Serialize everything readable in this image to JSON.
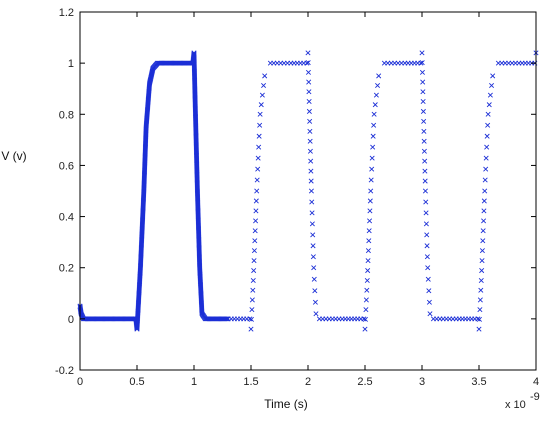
{
  "chart_data": {
    "type": "scatter",
    "xlabel": "Time (s)",
    "ylabel": "V (v)",
    "x_multiplier": {
      "base": "x 10",
      "exponent": "-9"
    },
    "x_unit_scale": 1e-09,
    "xlim": [
      0,
      4
    ],
    "ylim": [
      -0.2,
      1.2
    ],
    "x_ticks": [
      "0",
      "0.5",
      "1",
      "1.5",
      "2",
      "2.5",
      "3",
      "3.5",
      "4"
    ],
    "y_ticks": [
      "-0.2",
      "0",
      "0.2",
      "0.4",
      "0.6",
      "0.8",
      "1",
      "1.2"
    ],
    "grid": false,
    "marker": "x",
    "colors": {
      "series": "#1c2fd6",
      "axis": "#000000"
    },
    "series": [
      {
        "values": [
          [
            0.0,
            0.05
          ],
          [
            0.01,
            0.02
          ],
          [
            0.03,
            0.0
          ],
          [
            0.1,
            0.0
          ],
          [
            0.25,
            0.0
          ],
          [
            0.45,
            0.0
          ],
          [
            0.49,
            0.0
          ],
          [
            0.5,
            -0.04
          ],
          [
            0.53,
            0.2
          ],
          [
            0.56,
            0.5
          ],
          [
            0.58,
            0.75
          ],
          [
            0.61,
            0.92
          ],
          [
            0.64,
            0.98
          ],
          [
            0.68,
            1.0
          ],
          [
            0.8,
            1.0
          ],
          [
            0.95,
            1.0
          ],
          [
            0.99,
            1.0
          ],
          [
            1.0,
            1.04
          ],
          [
            1.01,
            0.85
          ],
          [
            1.03,
            0.5
          ],
          [
            1.05,
            0.2
          ],
          [
            1.07,
            0.02
          ],
          [
            1.1,
            0.0
          ],
          [
            1.3,
            0.0
          ],
          [
            1.49,
            0.0
          ],
          [
            1.5,
            -0.04
          ],
          [
            1.52,
            0.15
          ],
          [
            1.55,
            0.5
          ],
          [
            1.58,
            0.8
          ],
          [
            1.62,
            0.95
          ],
          [
            1.67,
            1.0
          ],
          [
            1.85,
            1.0
          ],
          [
            1.99,
            1.0
          ],
          [
            2.0,
            1.04
          ],
          [
            2.01,
            0.85
          ],
          [
            2.03,
            0.5
          ],
          [
            2.05,
            0.2
          ],
          [
            2.07,
            0.02
          ],
          [
            2.1,
            0.0
          ],
          [
            2.3,
            0.0
          ],
          [
            2.49,
            0.0
          ],
          [
            2.5,
            -0.04
          ],
          [
            2.52,
            0.15
          ],
          [
            2.55,
            0.5
          ],
          [
            2.58,
            0.8
          ],
          [
            2.62,
            0.95
          ],
          [
            2.67,
            1.0
          ],
          [
            2.85,
            1.0
          ],
          [
            2.99,
            1.0
          ],
          [
            3.0,
            1.04
          ],
          [
            3.01,
            0.85
          ],
          [
            3.03,
            0.5
          ],
          [
            3.05,
            0.2
          ],
          [
            3.07,
            0.02
          ],
          [
            3.1,
            0.0
          ],
          [
            3.3,
            0.0
          ],
          [
            3.49,
            0.0
          ],
          [
            3.5,
            -0.04
          ],
          [
            3.52,
            0.15
          ],
          [
            3.55,
            0.5
          ],
          [
            3.58,
            0.8
          ],
          [
            3.62,
            0.95
          ],
          [
            3.67,
            1.0
          ],
          [
            3.85,
            1.0
          ],
          [
            3.99,
            1.0
          ],
          [
            4.0,
            1.04
          ]
        ]
      }
    ]
  }
}
